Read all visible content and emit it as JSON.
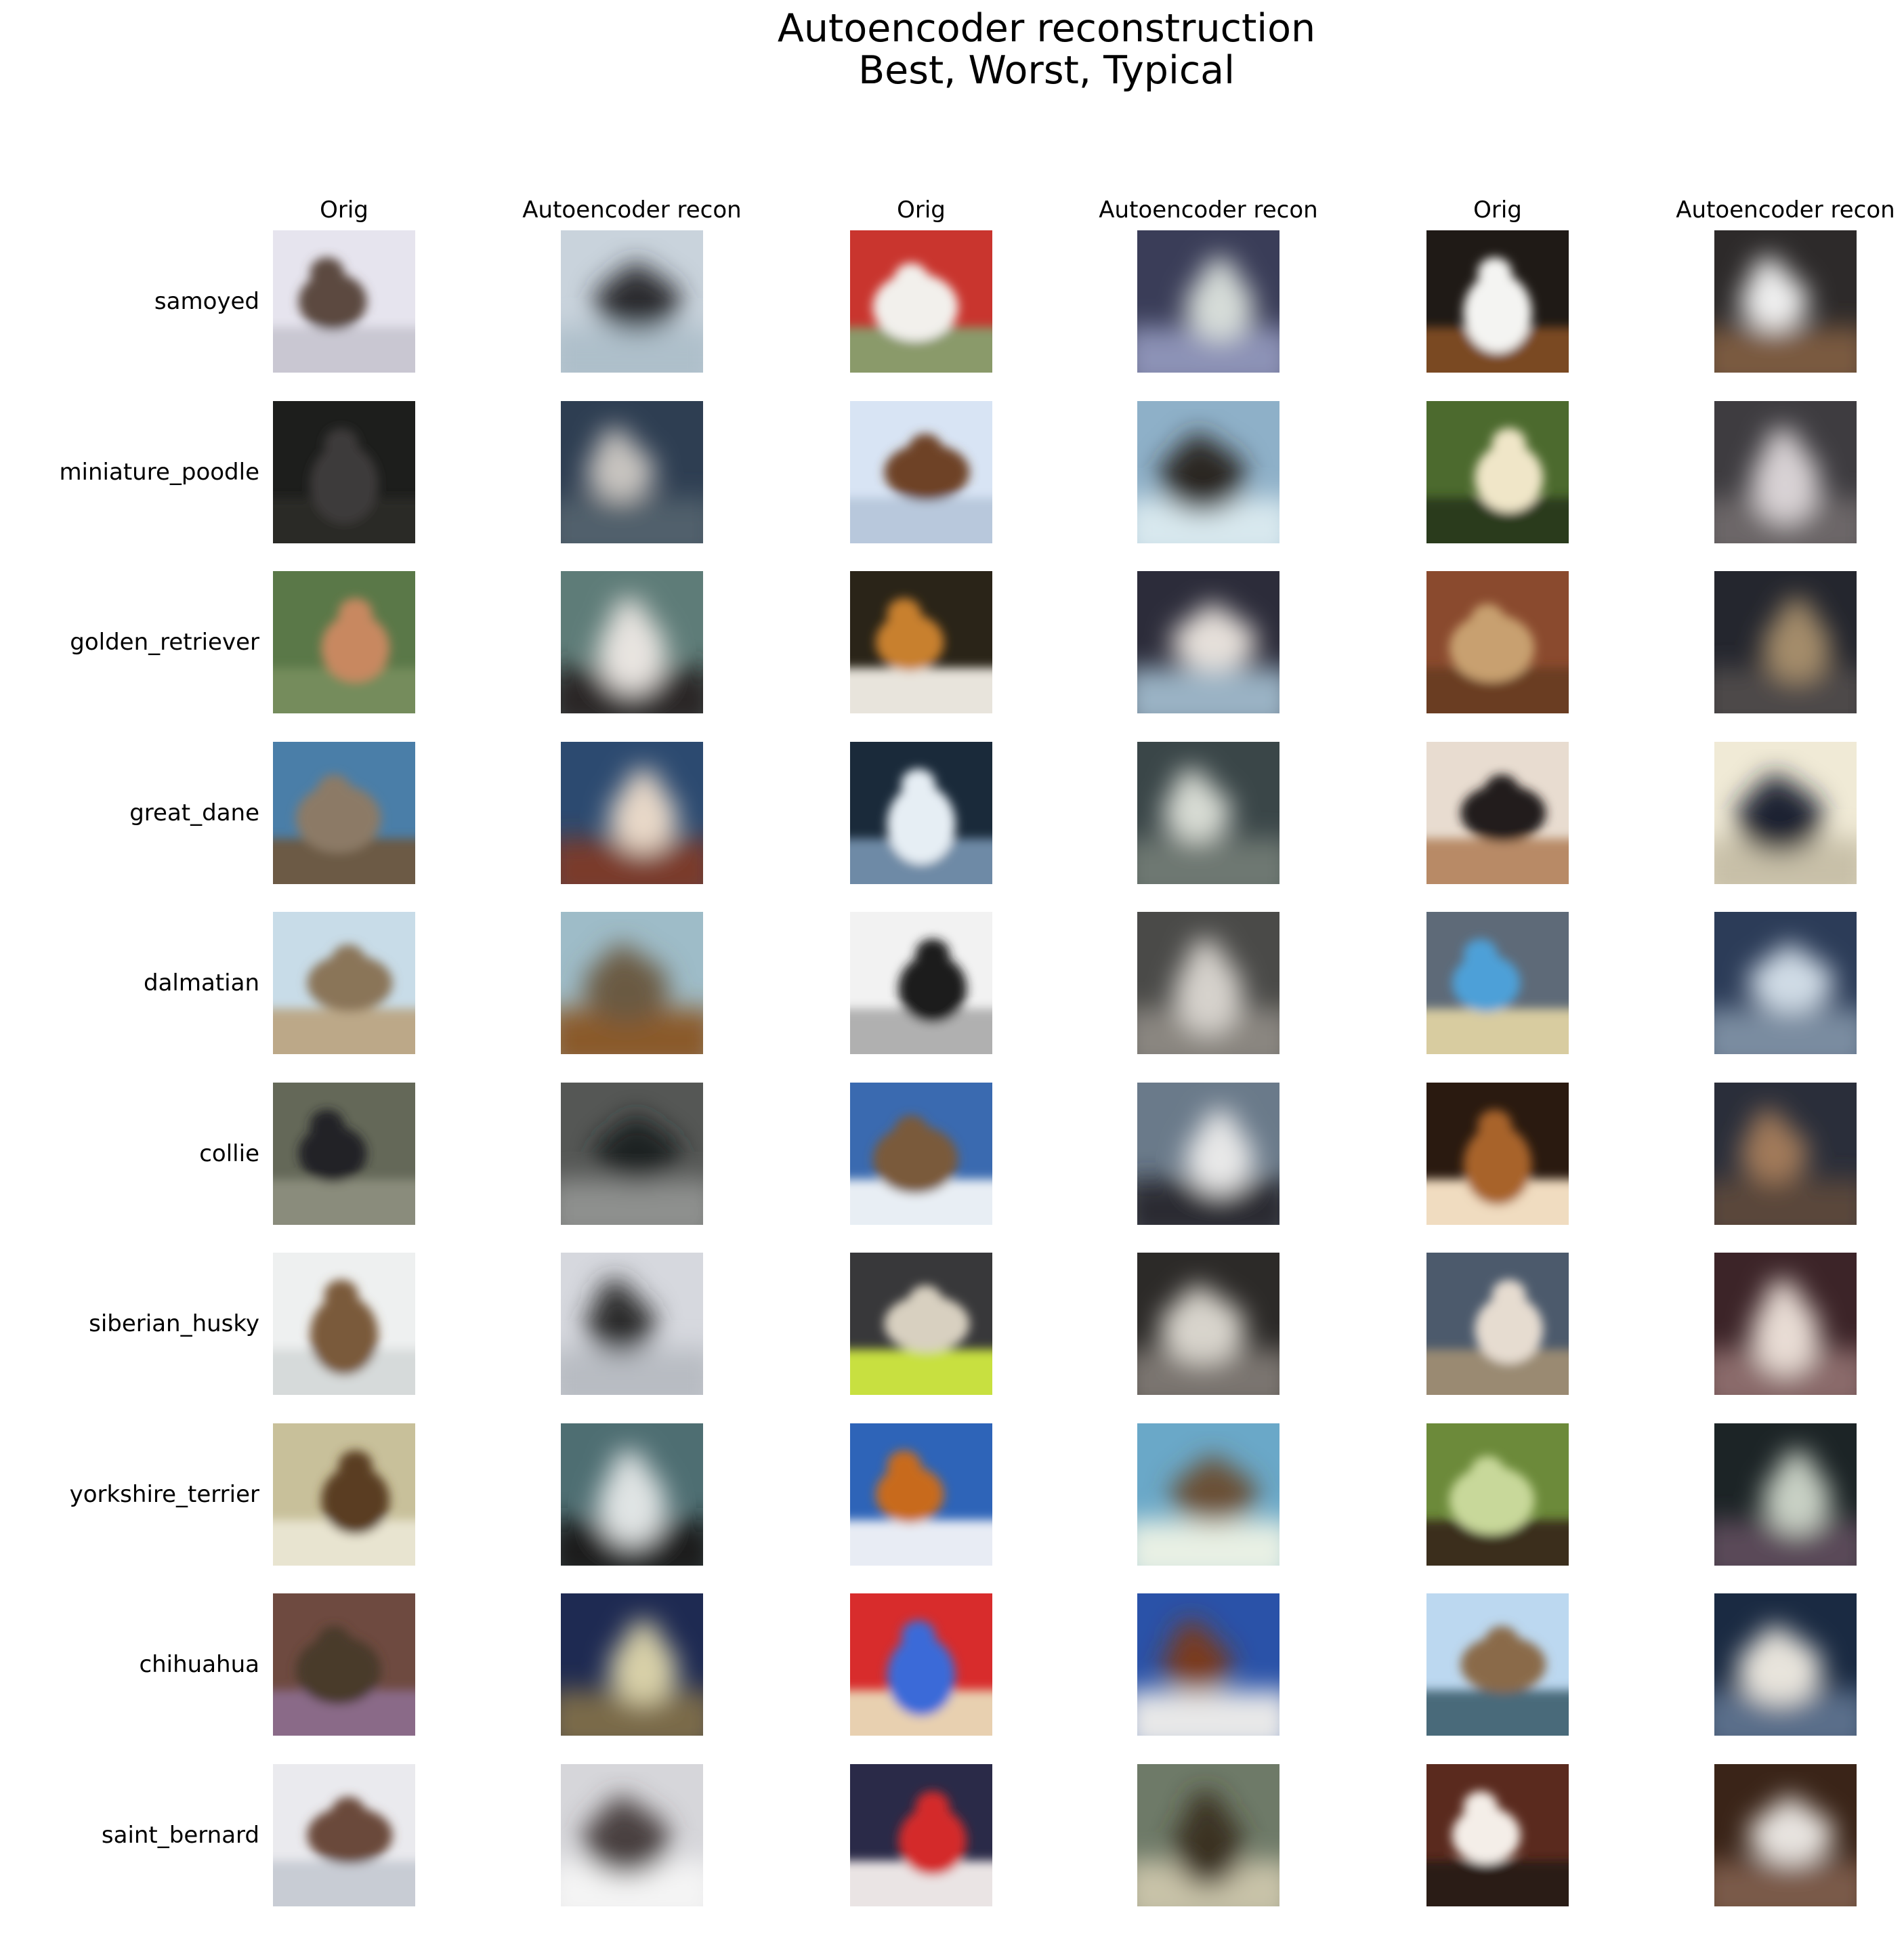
{
  "figure": {
    "title_line_1": "Autoencoder reconstruction",
    "title_line_2": "Best, Worst, Typical"
  },
  "column_headers": [
    "Orig",
    "Autoencoder recon",
    "Orig",
    "Autoencoder recon",
    "Orig",
    "Autoencoder recon"
  ],
  "row_labels": [
    "samoyed",
    "miniature_poodle",
    "golden_retriever",
    "great_dane",
    "dalmatian",
    "collie",
    "siberian_husky",
    "yorkshire_terrier",
    "chihuahua",
    "saint_bernard"
  ],
  "tile_palettes": [
    [
      [
        "#e6e4ee",
        "#5b4a40",
        "#c9c7d2"
      ],
      [
        "#c9d3dc",
        "#2b2a2e",
        "#aebfca"
      ],
      [
        "#c9352e",
        "#f2f0ec",
        "#8a9a6a"
      ],
      [
        "#3a3d58",
        "#d6dcd8",
        "#8c92b6"
      ],
      [
        "#1f1a16",
        "#f4f4f2",
        "#7a4a22"
      ],
      [
        "#2d2a2a",
        "#efefef",
        "#7a5a40"
      ]
    ],
    [
      [
        "#1d1e1c",
        "#3e3a3a",
        "#2a2b28"
      ],
      [
        "#2e3e52",
        "#c8c4c0",
        "#51606c"
      ],
      [
        "#d8e4f4",
        "#6e4228",
        "#b8c8dc"
      ],
      [
        "#8eb0c8",
        "#2a2624",
        "#d8e8ee"
      ],
      [
        "#4c6a2e",
        "#f0e6c8",
        "#2a3a1e"
      ],
      [
        "#3e3c40",
        "#d8d2d4",
        "#6c6668"
      ]
    ],
    [
      [
        "#5a7848",
        "#c88860",
        "#748c5c"
      ],
      [
        "#5e7c78",
        "#e8e4e0",
        "#2a2826"
      ],
      [
        "#2a2418",
        "#c8802e",
        "#e8e4dc"
      ],
      [
        "#2c2c3a",
        "#e6e0da",
        "#9ab2c4"
      ],
      [
        "#8a4a2e",
        "#c8a070",
        "#6a3c22"
      ],
      [
        "#24262e",
        "#a48c6a",
        "#4e4a48"
      ]
    ],
    [
      [
        "#4a7ea8",
        "#8c7a66",
        "#6c5a44"
      ],
      [
        "#2c4a70",
        "#e8d8c8",
        "#7a3a2a"
      ],
      [
        "#1a2a3a",
        "#e6eef4",
        "#6e8aa6"
      ],
      [
        "#3a4648",
        "#d8dcd4",
        "#6e7872"
      ],
      [
        "#e8dcd0",
        "#241e1c",
        "#b88a66"
      ],
      [
        "#f0ead6",
        "#1c2430",
        "#c8c0a8"
      ]
    ],
    [
      [
        "#c8dce8",
        "#8a7458",
        "#bca888"
      ],
      [
        "#9ebcc8",
        "#6a5a42",
        "#8a5a2a"
      ],
      [
        "#f2f2f2",
        "#1c1c1c",
        "#b0b0b0"
      ],
      [
        "#4a4a48",
        "#d6d2cc",
        "#8a8680"
      ],
      [
        "#5e6a78",
        "#4ea0d8",
        "#d8cca0"
      ],
      [
        "#2c3c58",
        "#d0dce6",
        "#7a8ca0"
      ]
    ],
    [
      [
        "#646858",
        "#242428",
        "#8a8c7c"
      ],
      [
        "#555755",
        "#1e2022",
        "#8e908e"
      ],
      [
        "#3a6ab0",
        "#7a5a3a",
        "#e8eef4"
      ],
      [
        "#6a7a8a",
        "#e8e8e8",
        "#2a2c30"
      ],
      [
        "#2a1a10",
        "#a8642c",
        "#f0dcc0"
      ],
      [
        "#2a2e3a",
        "#a27a5a",
        "#5a463a"
      ]
    ],
    [
      [
        "#eef0f0",
        "#7a5a3a",
        "#d6dada"
      ],
      [
        "#d6d8de",
        "#2a2a2a",
        "#b8bcc2"
      ],
      [
        "#38383a",
        "#d8d0c0",
        "#c8e040"
      ],
      [
        "#2c2a28",
        "#d8d4cc",
        "#7a7470"
      ],
      [
        "#4c5a6c",
        "#e6dcd0",
        "#9a8a72"
      ],
      [
        "#3c2428",
        "#e8dcd4",
        "#8a6a6a"
      ]
    ],
    [
      [
        "#c8c09a",
        "#5a3c22",
        "#e8e4d0"
      ],
      [
        "#4e6e72",
        "#e0e4e4",
        "#1e1e1e"
      ],
      [
        "#2e64b8",
        "#c86a1e",
        "#e8ecf4"
      ],
      [
        "#6aa8c8",
        "#6a5034",
        "#e8f0e4"
      ],
      [
        "#6c8a3a",
        "#c8d89a",
        "#3a2e1c"
      ],
      [
        "#1c2426",
        "#c8d0c4",
        "#5a4a58"
      ]
    ],
    [
      [
        "#6e4a40",
        "#4a3a2a",
        "#8a6a88"
      ],
      [
        "#1e2a52",
        "#d8d0a8",
        "#7a6a4a"
      ],
      [
        "#d82c2c",
        "#3a6ad8",
        "#e8d0b0"
      ],
      [
        "#2a52a8",
        "#7a3a1e",
        "#e8e8e8"
      ],
      [
        "#bcd8f0",
        "#8a6a4a",
        "#4a6a7a"
      ],
      [
        "#1a2a42",
        "#e8e4dc",
        "#5a6e8a"
      ]
    ],
    [
      [
        "#eaeaee",
        "#6a4a3a",
        "#c8ccd4"
      ],
      [
        "#d6d6da",
        "#4a4040",
        "#f4f4f4"
      ],
      [
        "#2a2a48",
        "#d42a2a",
        "#eae4e4"
      ],
      [
        "#6e7a68",
        "#3a3020",
        "#c8c2a8"
      ],
      [
        "#5a2a1e",
        "#f4eee8",
        "#2a1a12"
      ],
      [
        "#3a2418",
        "#e8e4e0",
        "#7a5a48"
      ]
    ]
  ]
}
